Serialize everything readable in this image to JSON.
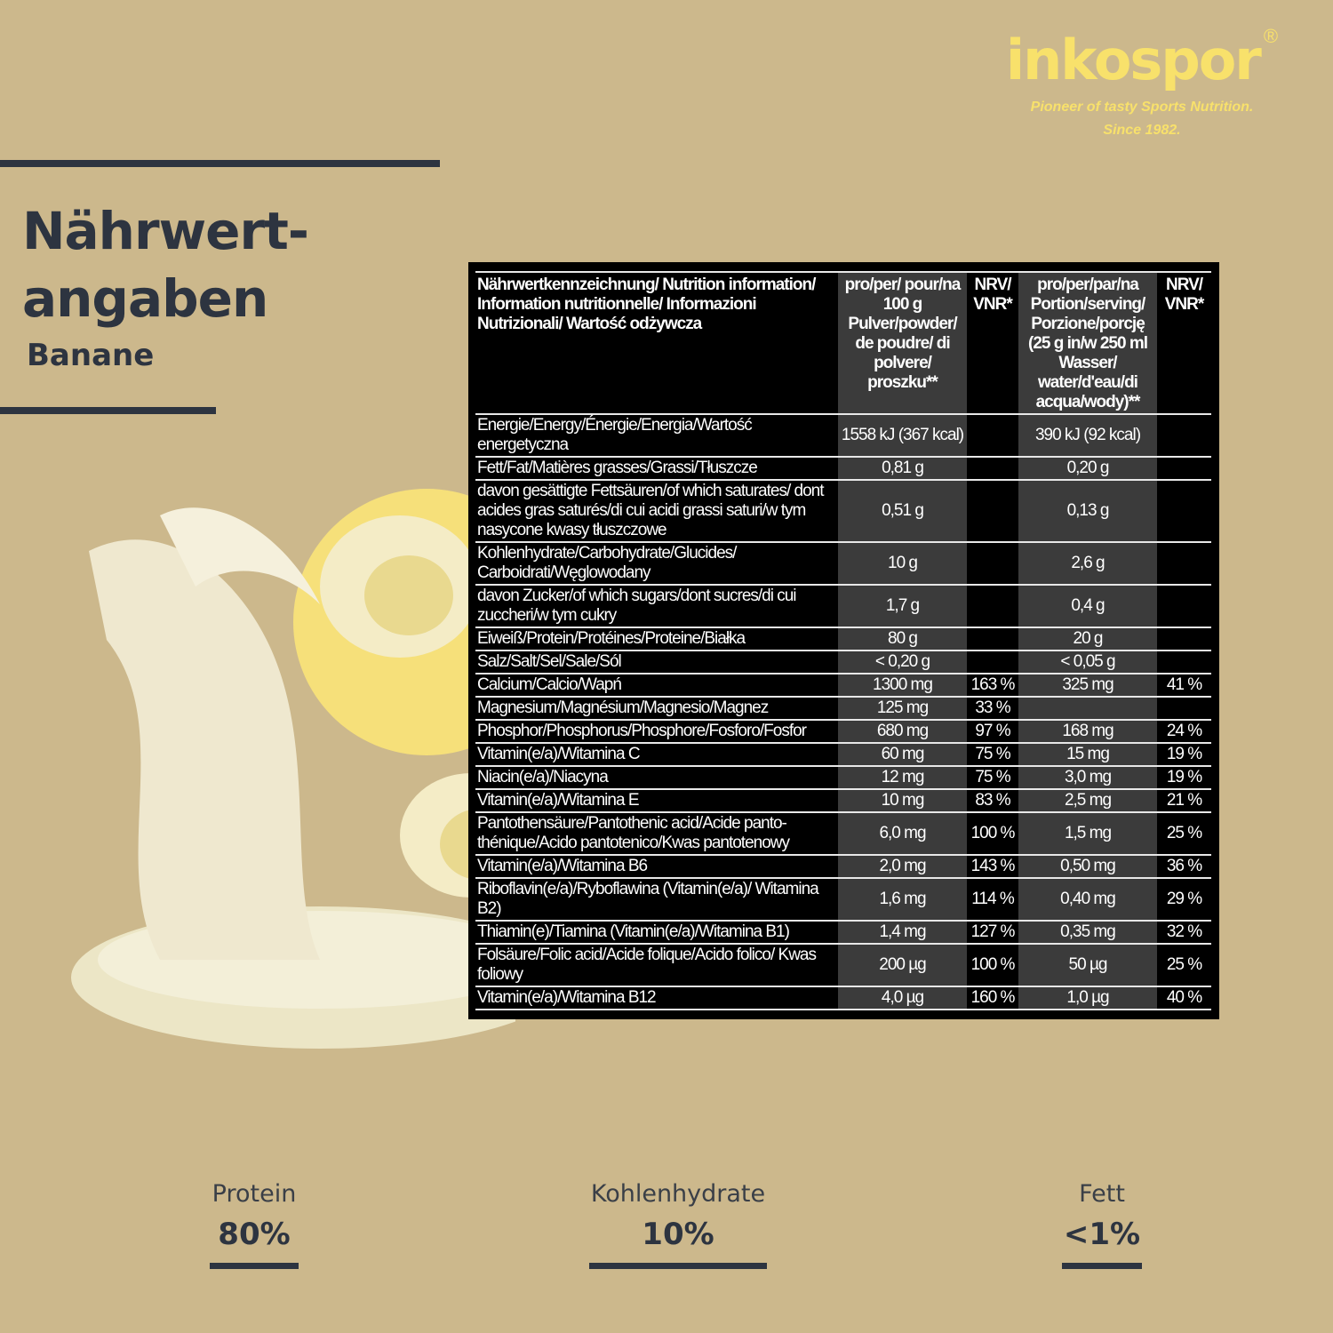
{
  "brand": {
    "name": "inkospor",
    "registered": "®",
    "tagline": "Pioneer of tasty Sports Nutrition.",
    "since": "Since 1982.",
    "color": "#f8e16b"
  },
  "title": {
    "line1": "Nährwert-",
    "line2": "angaben",
    "flavor": "Banane"
  },
  "table": {
    "headers": [
      "Nährwertkennzeichnung/ Nutrition information/ Information nutritionnelle/ Informazioni Nutrizionali/ Wartość odżywcza",
      "pro/per/ pour/na 100 g Pulver/powder/ de poudre/ di polvere/ proszku**",
      "NRV/ VNR*",
      "pro/per/par/na Portion/serving/ Porzione/porcję (25 g in/w 250 ml Wasser/ water/d'eau/di acqua/wody)**",
      "NRV/ VNR*"
    ],
    "rows": [
      [
        "Energie/Energy/Énergie/Energia/Wartość energetyczna",
        "1558 kJ (367 kcal)",
        "",
        "390 kJ (92 kcal)",
        ""
      ],
      [
        "Fett/Fat/Matières grasses/Grassi/Tłuszcze",
        "0,81 g",
        "",
        "0,20 g",
        ""
      ],
      [
        "davon gesättigte Fettsäuren/of which saturates/ dont acides gras saturés/di cui acidi grassi saturi/w tym nasycone kwasy tłuszczowe",
        "0,51 g",
        "",
        "0,13 g",
        ""
      ],
      [
        "Kohlenhydrate/Carbohydrate/Glucides/ Carboidrati/Węglowodany",
        "10 g",
        "",
        "2,6 g",
        ""
      ],
      [
        "davon Zucker/of which sugars/dont sucres/di cui zuccheri/w tym cukry",
        "1,7 g",
        "",
        "0,4 g",
        ""
      ],
      [
        "Eiweiß/Protein/Protéines/Proteine/Białka",
        "80 g",
        "",
        "20 g",
        ""
      ],
      [
        "Salz/Salt/Sel/Sale/Sól",
        "< 0,20 g",
        "",
        "< 0,05 g",
        ""
      ],
      [
        "Calcium/Calcio/Wapń",
        "1300 mg",
        "163 %",
        "325 mg",
        "41 %"
      ],
      [
        "Magnesium/Magnésium/Magnesio/Magnez",
        "125 mg",
        "33 %",
        "",
        ""
      ],
      [
        "Phosphor/Phosphorus/Phosphore/Fosforo/Fosfor",
        "680 mg",
        "97 %",
        "168 mg",
        "24 %"
      ],
      [
        "Vitamin(e/a)/Witamina C",
        "60 mg",
        "75 %",
        "15 mg",
        "19 %"
      ],
      [
        "Niacin(e/a)/Niacyna",
        "12 mg",
        "75 %",
        "3,0 mg",
        "19 %"
      ],
      [
        "Vitamin(e/a)/Witamina E",
        "10 mg",
        "83 %",
        "2,5 mg",
        "21 %"
      ],
      [
        "Pantothensäure/Pantothenic acid/Acide panto-thénique/Acido pantotenico/Kwas pantotenowy",
        "6,0 mg",
        "100 %",
        "1,5 mg",
        "25 %"
      ],
      [
        "Vitamin(e/a)/Witamina B6",
        "2,0 mg",
        "143 %",
        "0,50 mg",
        "36 %"
      ],
      [
        "Riboflavin(e/a)/Ryboflawina (Vitamin(e/a)/ Witamina B2)",
        "1,6 mg",
        "114 %",
        "0,40 mg",
        "29 %"
      ],
      [
        "Thiamin(e)/Tiamina (Vitamin(e/a)/Witamina B1)",
        "1,4 mg",
        "127 %",
        "0,35 mg",
        "32 %"
      ],
      [
        "Folsäure/Folic acid/Acide folique/Acido folico/ Kwas foliowy",
        "200 µg",
        "100 %",
        "50 µg",
        "25 %"
      ],
      [
        "Vitamin(e/a)/Witamina B12",
        "4,0 µg",
        "160 %",
        "1,0 µg",
        "40 %"
      ]
    ]
  },
  "stats": [
    {
      "label": "Protein",
      "value": "80%"
    },
    {
      "label": "Kohlenhydrate",
      "value": "10%"
    },
    {
      "label": "Fett",
      "value": "<1%"
    }
  ]
}
